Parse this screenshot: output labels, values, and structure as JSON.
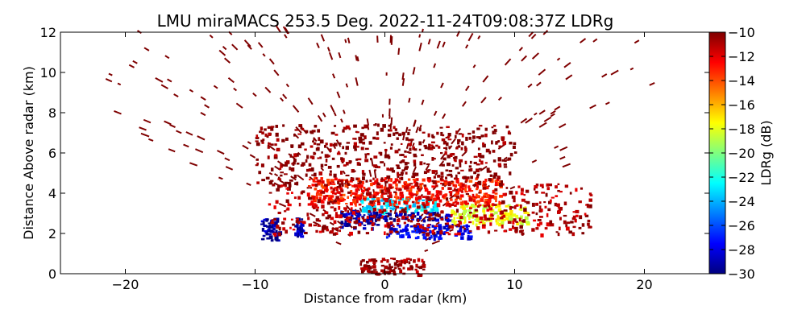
{
  "chart_data": {
    "type": "heatmap",
    "title": "LMU miraMACS 253.5 Deg. 2022-11-24T09:08:37Z  LDRg",
    "xlabel": "Distance from radar (km)",
    "ylabel": "Distance Above radar  (km)",
    "xlim": [
      -25,
      25
    ],
    "ylim": [
      0,
      12
    ],
    "x_ticks": [
      -20,
      -10,
      0,
      10,
      20
    ],
    "x_tick_labels": [
      "−20",
      "−10",
      "0",
      "10",
      "20"
    ],
    "y_ticks": [
      0,
      2,
      4,
      6,
      8,
      10,
      12
    ],
    "y_tick_labels": [
      "0",
      "2",
      "4",
      "6",
      "8",
      "10",
      "12"
    ],
    "grid": false,
    "colorbar": {
      "label": "LDRg (dB)",
      "range": [
        -30,
        -10
      ],
      "ticks": [
        -10,
        -12,
        -14,
        -16,
        -18,
        -20,
        -22,
        -24,
        -26,
        -28,
        -30
      ],
      "tick_labels": [
        "−10",
        "−12",
        "−14",
        "−16",
        "−18",
        "−20",
        "−22",
        "−24",
        "−26",
        "−28",
        "−30"
      ],
      "colormap": "jet",
      "colormap_stops": [
        "#00007f",
        "#0000ff",
        "#007fff",
        "#00ffff",
        "#7fff7f",
        "#ffff00",
        "#ff7f00",
        "#ff0000",
        "#7f0000"
      ]
    },
    "regions": [
      {
        "x": [
          -9.6,
          -8.2
        ],
        "y": [
          1.7,
          2.8
        ],
        "ldr": -29
      },
      {
        "x": [
          -7.0,
          -6.4
        ],
        "y": [
          1.9,
          2.8
        ],
        "ldr": -29
      },
      {
        "x": [
          -3.5,
          -0.5
        ],
        "y": [
          2.3,
          3.2
        ],
        "ldr": -29
      },
      {
        "x": [
          -1.5,
          5.0
        ],
        "y": [
          2.7,
          3.1
        ],
        "ldr": -29
      },
      {
        "x": [
          0.0,
          6.5
        ],
        "y": [
          1.8,
          2.5
        ],
        "ldr": -28
      },
      {
        "x": [
          -2.0,
          4.0
        ],
        "y": [
          3.1,
          3.8
        ],
        "ldr": -23
      },
      {
        "x": [
          5.0,
          11.0
        ],
        "y": [
          2.5,
          3.5
        ],
        "ldr": -18
      },
      {
        "x": [
          -6.0,
          9.0
        ],
        "y": [
          3.5,
          4.8
        ],
        "ldr": -13
      },
      {
        "x": [
          -9.0,
          16.0
        ],
        "y": [
          2.0,
          4.5
        ],
        "ldr": -11
      },
      {
        "x": [
          -2.0,
          3.0
        ],
        "y": [
          0.0,
          0.8
        ],
        "ldr": -10.5
      },
      {
        "x": [
          -10.0,
          10.0
        ],
        "y": [
          4.5,
          7.5
        ],
        "ldr": -10
      }
    ],
    "sparse_rays": [
      {
        "ldr": -10,
        "note": "speckle"
      }
    ]
  }
}
